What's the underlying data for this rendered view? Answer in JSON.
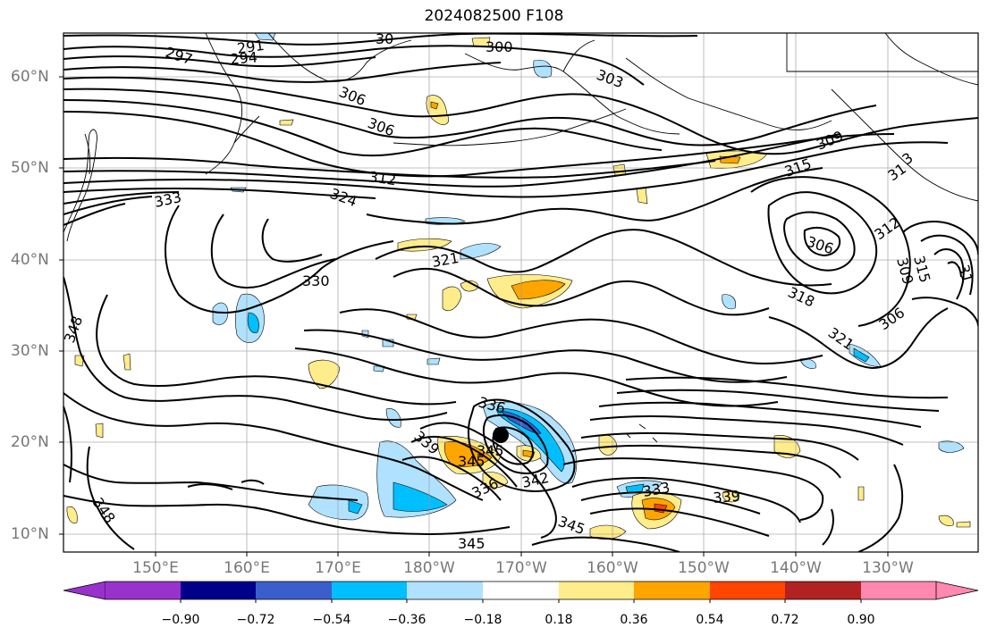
{
  "title": "2024082500 F108",
  "lat_labels": [
    "60°N",
    "50°N",
    "40°N",
    "30°N",
    "20°N",
    "10°N"
  ],
  "lon_labels": [
    "150°E",
    "160°E",
    "170°E",
    "180°W",
    "170°W",
    "160°W",
    "150°W",
    "140°W",
    "130°W"
  ],
  "colorbar": {
    "labels": [
      "−0.90",
      "−0.72",
      "−0.54",
      "−0.36",
      "−0.18",
      "0.18",
      "0.36",
      "0.54",
      "0.72",
      "0.90"
    ],
    "colors": [
      "#9932cc",
      "#00008b",
      "#3a5fcd",
      "#00bfff",
      "#b0e2ff",
      "#ffffff",
      "#ffec8b",
      "#ffa500",
      "#ff4500",
      "#b22222",
      "#ff88b0"
    ]
  },
  "contour_labels": [
    {
      "text": "291"
    },
    {
      "text": "297"
    },
    {
      "text": "294"
    },
    {
      "text": "30"
    },
    {
      "text": "300"
    },
    {
      "text": "303"
    },
    {
      "text": "306"
    },
    {
      "text": "306"
    },
    {
      "text": "309"
    },
    {
      "text": "312"
    },
    {
      "text": "315"
    },
    {
      "text": "324"
    },
    {
      "text": "333"
    },
    {
      "text": "312"
    },
    {
      "text": "306"
    },
    {
      "text": "321"
    },
    {
      "text": "330"
    },
    {
      "text": "318"
    },
    {
      "text": "309"
    },
    {
      "text": "315"
    },
    {
      "text": "306"
    },
    {
      "text": "321"
    },
    {
      "text": "348"
    },
    {
      "text": "336"
    },
    {
      "text": "339"
    },
    {
      "text": "345"
    },
    {
      "text": "345"
    },
    {
      "text": "342"
    },
    {
      "text": "336"
    },
    {
      "text": "333"
    },
    {
      "text": "339"
    },
    {
      "text": "345"
    },
    {
      "text": "348"
    },
    {
      "text": "345"
    },
    {
      "text": "31"
    },
    {
      "text": "3"
    },
    {
      "text": "31"
    }
  ],
  "marker": {
    "name": "storm-center",
    "lat": 21,
    "lon": -172
  }
}
